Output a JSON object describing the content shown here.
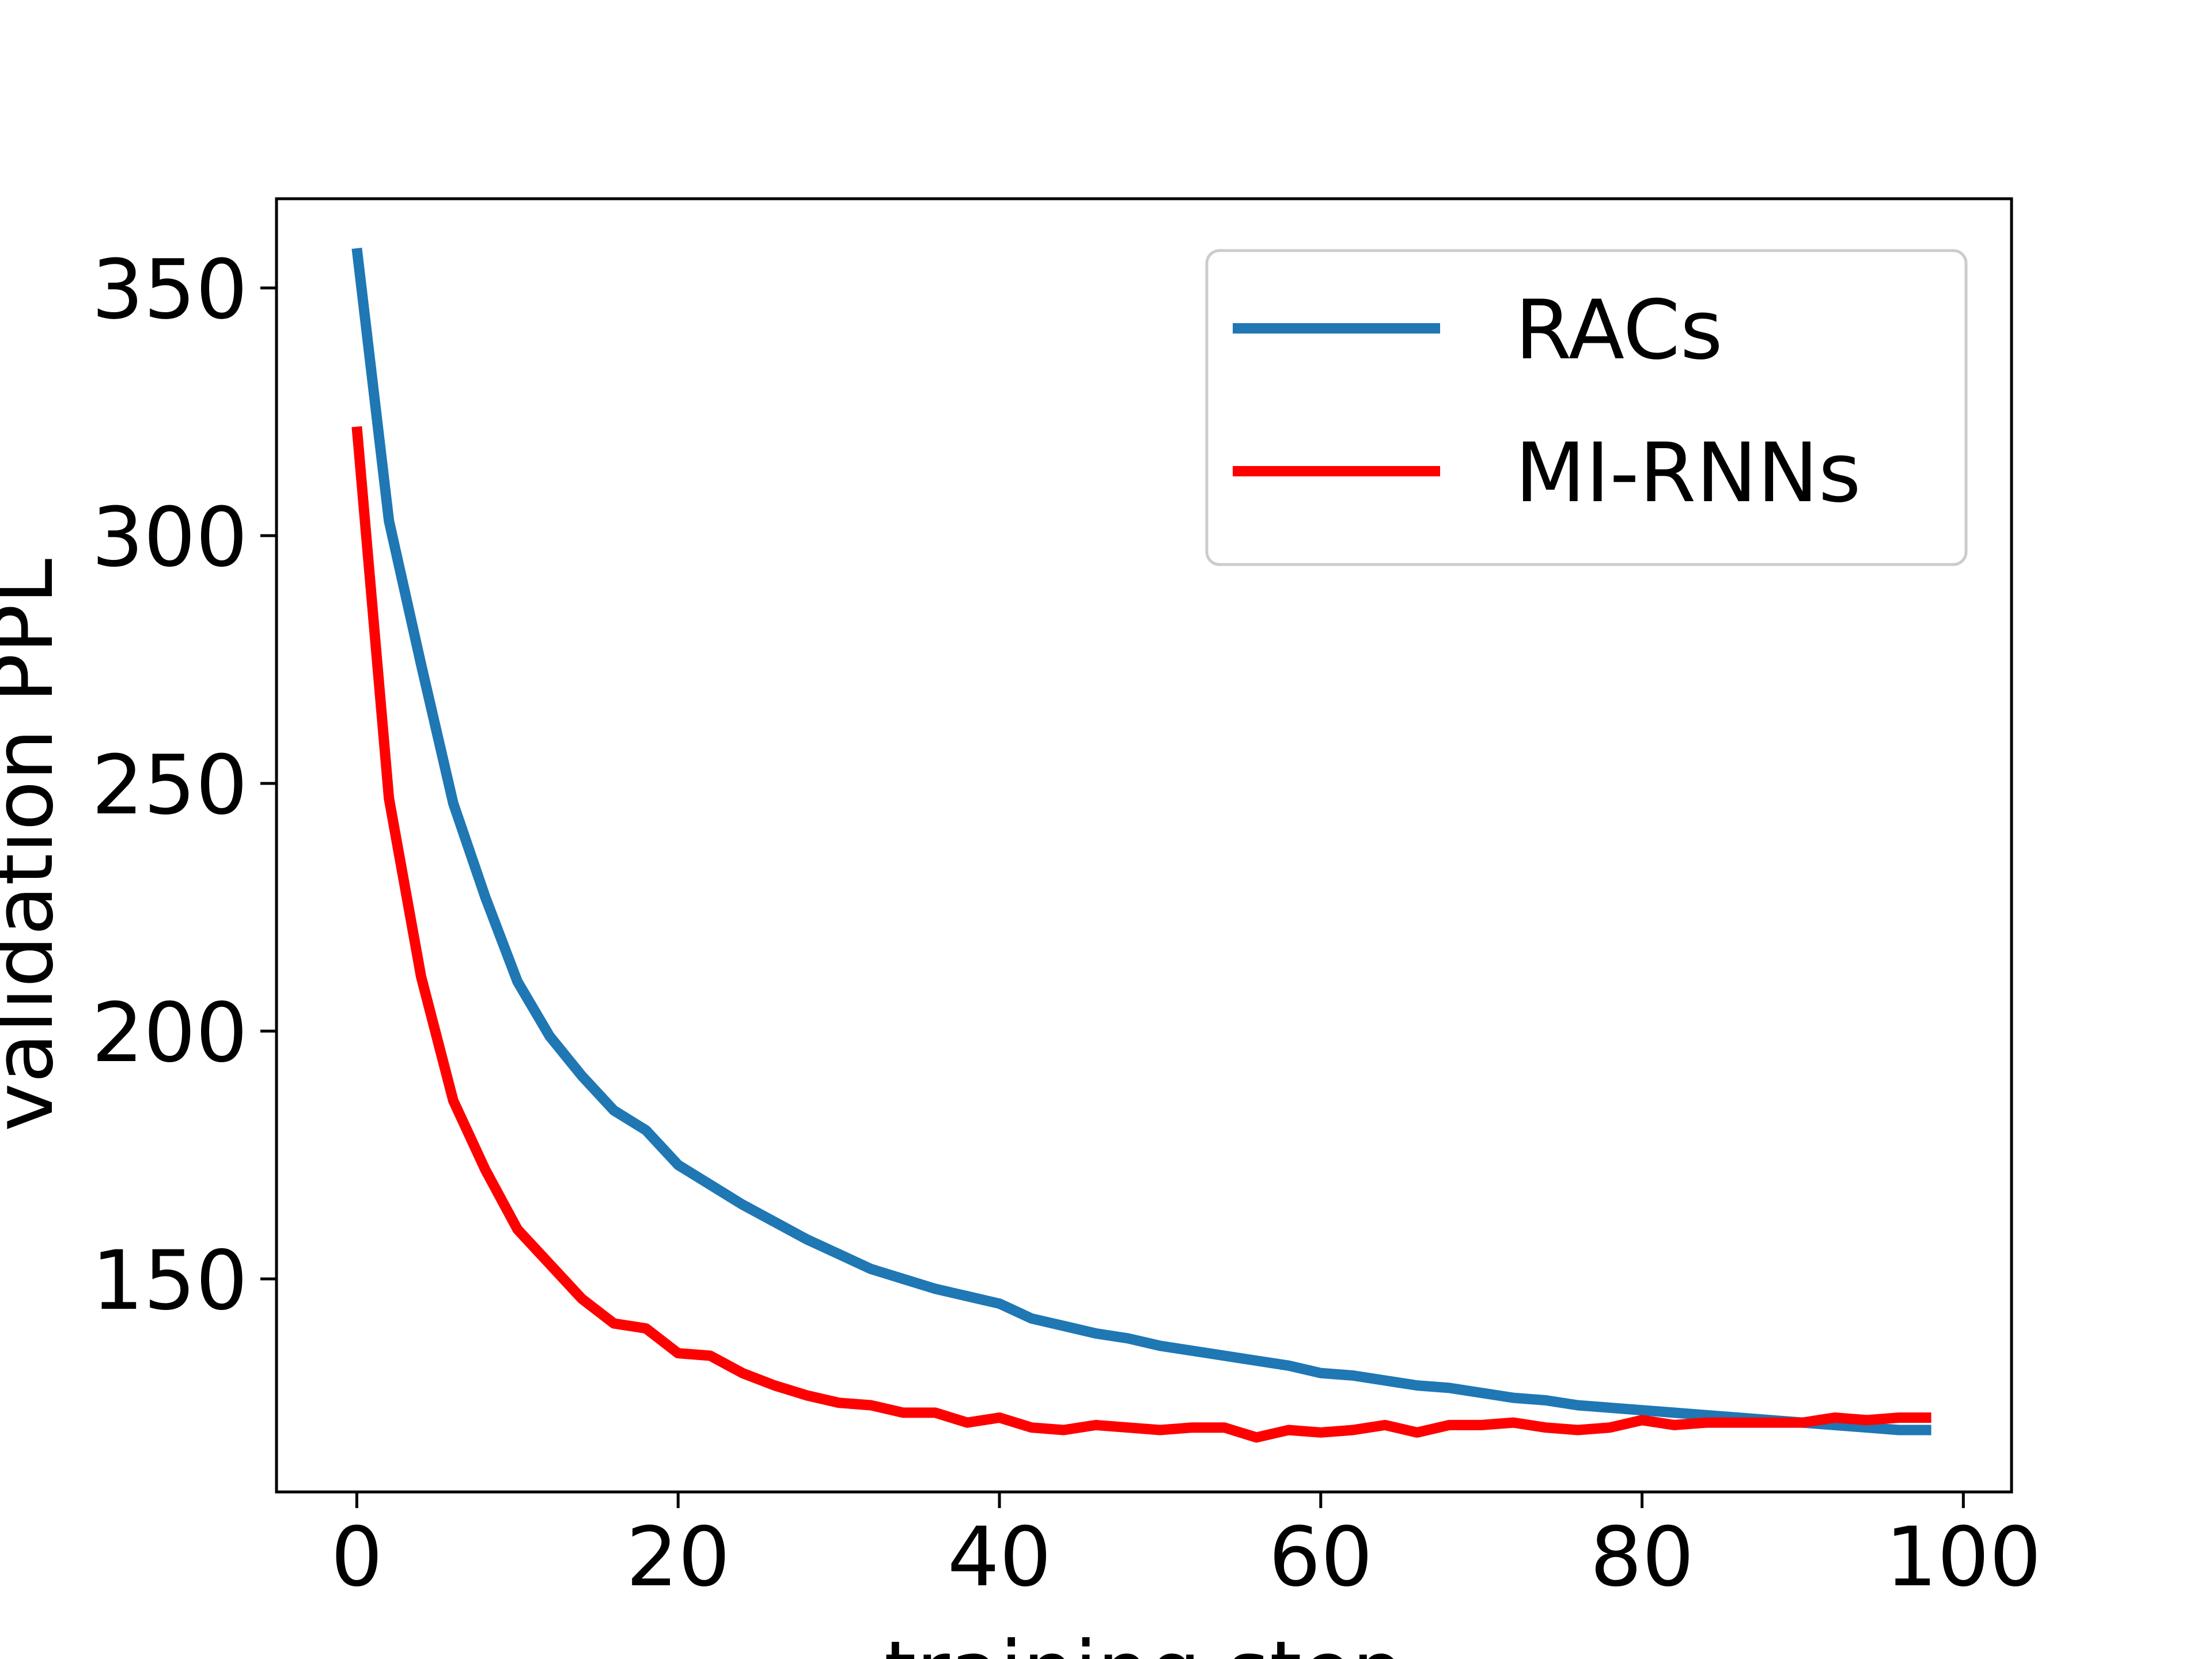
{
  "chart_data": {
    "type": "line",
    "title": "",
    "xlabel": "training step",
    "ylabel": "validation PPL",
    "xlim": [
      -5,
      103
    ],
    "ylim": [
      107,
      368
    ],
    "xticks": [
      0,
      20,
      40,
      60,
      80,
      100
    ],
    "yticks": [
      150,
      200,
      250,
      300,
      350
    ],
    "grid": false,
    "legend": "top-right",
    "x": [
      0,
      2,
      4,
      6,
      8,
      10,
      12,
      14,
      16,
      18,
      20,
      22,
      24,
      26,
      28,
      30,
      32,
      34,
      36,
      38,
      40,
      42,
      44,
      46,
      48,
      50,
      52,
      54,
      56,
      58,
      60,
      62,
      64,
      66,
      68,
      70,
      72,
      74,
      76,
      78,
      80,
      82,
      84,
      86,
      88,
      90,
      92,
      94,
      96,
      98
    ],
    "series": [
      {
        "name": "RACs",
        "color": "#1f77b4",
        "values": [
          358,
          303,
          274,
          246,
          227,
          210,
          199,
          191,
          184,
          180,
          173,
          169,
          165,
          161.5,
          158,
          155,
          152,
          150,
          148,
          146.5,
          145,
          142,
          140.5,
          139,
          138,
          136.5,
          135.5,
          134.5,
          133.5,
          132.5,
          131,
          130.5,
          129.5,
          128.5,
          128,
          127,
          126,
          125.5,
          124.5,
          124,
          123.5,
          123,
          122.5,
          122,
          121.5,
          121,
          120.5,
          120,
          119.5,
          119.5
        ]
      },
      {
        "name": "MI-RNNs",
        "color": "#ff0000",
        "values": [
          322,
          247,
          211,
          186,
          172,
          160,
          153,
          146,
          141,
          140,
          135,
          134.5,
          131,
          128.5,
          126.5,
          125,
          124.5,
          123,
          123,
          121,
          122,
          120,
          119.5,
          120.5,
          120,
          119.5,
          120,
          120,
          118,
          119.5,
          119,
          119.5,
          120.5,
          119,
          120.5,
          120.5,
          121,
          120,
          119.5,
          120,
          121.5,
          120.5,
          121,
          121,
          121,
          121,
          122,
          121.5,
          122,
          122
        ]
      }
    ]
  }
}
